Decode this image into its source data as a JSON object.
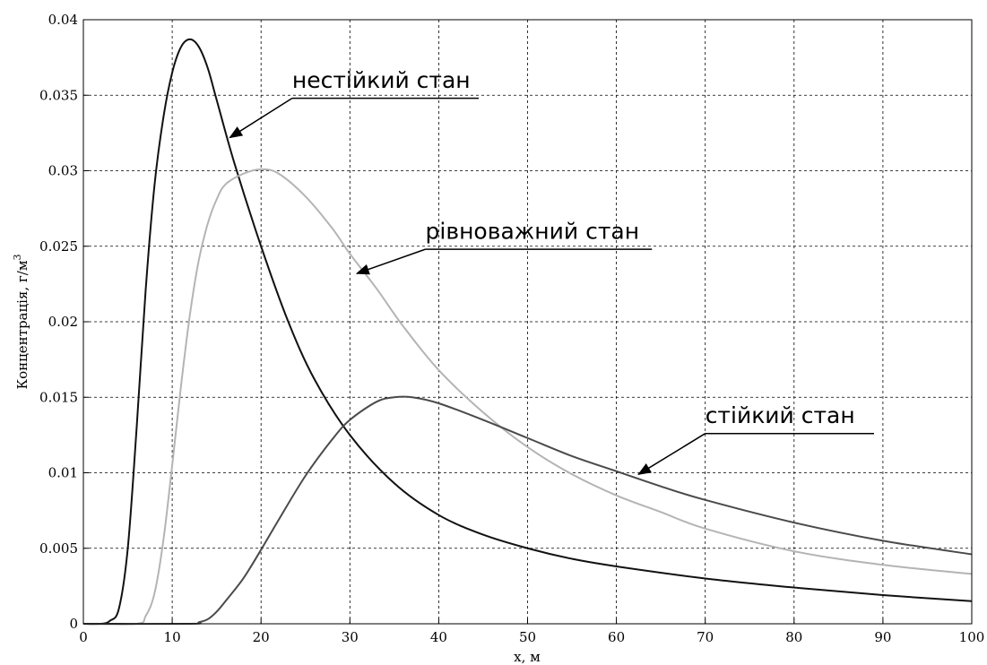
{
  "chart_data": {
    "type": "line",
    "xlabel": "x, м",
    "ylabel": "Концентрація, г/м",
    "ylabel_sup": "3",
    "xlim": [
      0,
      100
    ],
    "ylim": [
      0,
      0.04
    ],
    "x_ticks": [
      "0",
      "10",
      "20",
      "30",
      "40",
      "50",
      "60",
      "70",
      "80",
      "90",
      "100"
    ],
    "y_ticks": [
      "0",
      "0.005",
      "0.01",
      "0.015",
      "0.02",
      "0.025",
      "0.03",
      "0.035",
      "0.04"
    ],
    "grid": true,
    "colors": {
      "black": "#111111",
      "light": "#b4b4b4",
      "dark": "#4a4a4a"
    },
    "series": [
      {
        "color": "#111111",
        "points": [
          [
            0,
            0
          ],
          [
            2,
            0
          ],
          [
            3,
            0.0002
          ],
          [
            4,
            0.001
          ],
          [
            5,
            0.005
          ],
          [
            6,
            0.013
          ],
          [
            7,
            0.022
          ],
          [
            8,
            0.029
          ],
          [
            9,
            0.0335
          ],
          [
            10,
            0.0365
          ],
          [
            11,
            0.0382
          ],
          [
            12,
            0.0387
          ],
          [
            13,
            0.0382
          ],
          [
            14,
            0.0368
          ],
          [
            15,
            0.0347
          ],
          [
            17,
            0.0305
          ],
          [
            20,
            0.025
          ],
          [
            23,
            0.0201
          ],
          [
            26,
            0.0162
          ],
          [
            30,
            0.0125
          ],
          [
            35,
            0.0093
          ],
          [
            40,
            0.0072
          ],
          [
            45,
            0.0059
          ],
          [
            50,
            0.005
          ],
          [
            55,
            0.0043
          ],
          [
            60,
            0.0038
          ],
          [
            70,
            0.003
          ],
          [
            80,
            0.0024
          ],
          [
            90,
            0.0019
          ],
          [
            100,
            0.0015
          ]
        ]
      },
      {
        "color": "#b4b4b4",
        "points": [
          [
            0,
            0
          ],
          [
            6,
            0
          ],
          [
            7,
            0.0005
          ],
          [
            8,
            0.002
          ],
          [
            9,
            0.0055
          ],
          [
            10,
            0.0105
          ],
          [
            11,
            0.0158
          ],
          [
            12,
            0.0205
          ],
          [
            13,
            0.0241
          ],
          [
            14,
            0.0265
          ],
          [
            15,
            0.0281
          ],
          [
            16,
            0.0291
          ],
          [
            18,
            0.0298
          ],
          [
            20,
            0.0301
          ],
          [
            22,
            0.0298
          ],
          [
            25,
            0.0283
          ],
          [
            28,
            0.0262
          ],
          [
            30,
            0.0245
          ],
          [
            33,
            0.0222
          ],
          [
            36,
            0.0197
          ],
          [
            40,
            0.0168
          ],
          [
            45,
            0.014
          ],
          [
            50,
            0.0117
          ],
          [
            55,
            0.0099
          ],
          [
            60,
            0.0085
          ],
          [
            65,
            0.0074
          ],
          [
            70,
            0.0063
          ],
          [
            80,
            0.0048
          ],
          [
            90,
            0.0039
          ],
          [
            100,
            0.0033
          ]
        ]
      },
      {
        "color": "#4a4a4a",
        "points": [
          [
            0,
            0
          ],
          [
            12,
            0
          ],
          [
            13,
            0.0001
          ],
          [
            14,
            0.0003
          ],
          [
            15,
            0.0008
          ],
          [
            16,
            0.0015
          ],
          [
            18,
            0.003
          ],
          [
            20,
            0.0049
          ],
          [
            22,
            0.0069
          ],
          [
            25,
            0.0098
          ],
          [
            28,
            0.0122
          ],
          [
            30,
            0.0135
          ],
          [
            33,
            0.0147
          ],
          [
            35,
            0.015
          ],
          [
            37,
            0.015
          ],
          [
            40,
            0.0146
          ],
          [
            45,
            0.0135
          ],
          [
            50,
            0.0123
          ],
          [
            55,
            0.0111
          ],
          [
            60,
            0.0101
          ],
          [
            65,
            0.0091
          ],
          [
            70,
            0.0082
          ],
          [
            80,
            0.0067
          ],
          [
            90,
            0.0055
          ],
          [
            100,
            0.0046
          ]
        ]
      }
    ],
    "annotations": [
      {
        "text": "нестійкий стан",
        "x": 23.5,
        "y": 0.0355,
        "underline_to_x": 44.5,
        "arrow_from": [
          23.5,
          0.0348
        ],
        "arrow_to": [
          16.5,
          0.0322
        ]
      },
      {
        "text": "рівноважний стан",
        "x": 38.5,
        "y": 0.0255,
        "underline_to_x": 64,
        "arrow_from": [
          38.5,
          0.0248
        ],
        "arrow_to": [
          30.8,
          0.0232
        ]
      },
      {
        "text": "стійкий стан",
        "x": 70,
        "y": 0.0133,
        "underline_to_x": 89,
        "arrow_from": [
          70,
          0.0126
        ],
        "arrow_to": [
          62.5,
          0.0099
        ]
      }
    ]
  }
}
